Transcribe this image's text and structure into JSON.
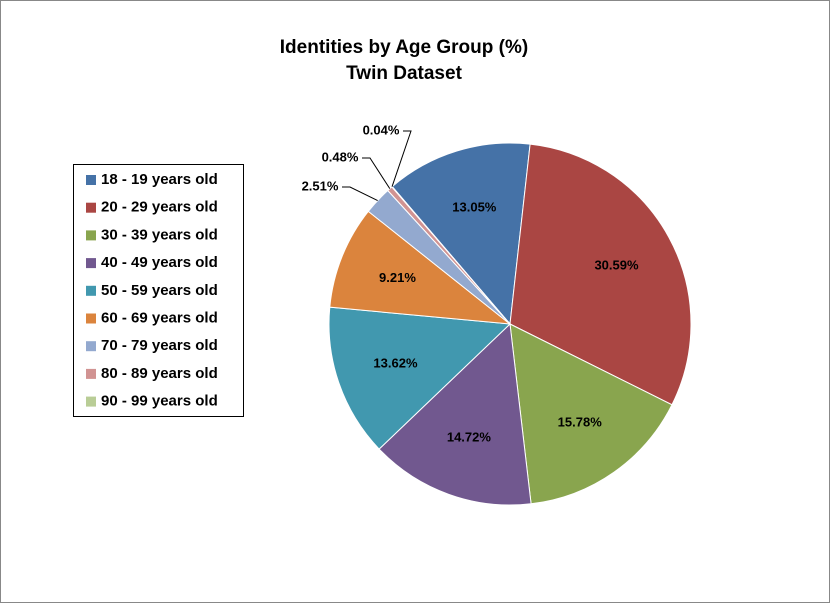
{
  "chart_data": {
    "type": "pie",
    "title": "Identities by Age Group (%)",
    "subtitle": "Twin Dataset",
    "categories": [
      "18 - 19 years old",
      "20 - 29 years old",
      "30 - 39 years old",
      "40 - 49 years old",
      "50 - 59 years old",
      "60 - 69 years old",
      "70 - 79 years old",
      "80 - 89 years old",
      "90 - 99 years old"
    ],
    "values": [
      13.05,
      30.59,
      15.78,
      14.72,
      13.62,
      9.21,
      2.51,
      0.48,
      0.04
    ],
    "value_labels": [
      "13.05%",
      "30.59%",
      "15.78%",
      "14.72%",
      "13.62%",
      "9.21%",
      "2.51%",
      "0.48%",
      "0.04%"
    ],
    "colors": [
      "#4572a7",
      "#aa4643",
      "#89a54e",
      "#71588f",
      "#4198af",
      "#db843d",
      "#93a9cf",
      "#d19392",
      "#b9cd96"
    ],
    "legend": "left"
  }
}
